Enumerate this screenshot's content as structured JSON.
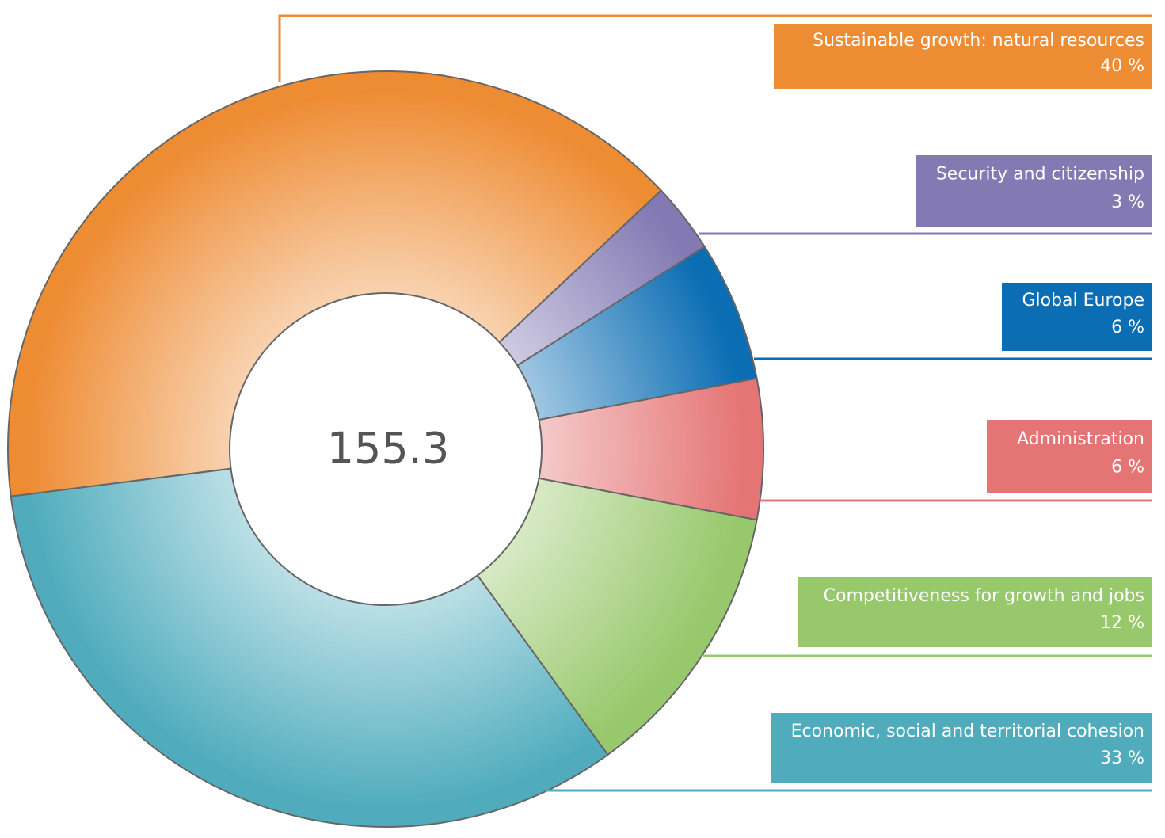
{
  "chart_data": {
    "type": "donut",
    "center_label": "155.3",
    "categories": [
      "Sustainable growth: natural resources",
      "Security and citizenship",
      "Global Europe",
      "Administration",
      "Competitiveness for growth and jobs",
      "Economic, social and territorial cohesion"
    ],
    "values": [
      40,
      3,
      6,
      6,
      12,
      33
    ],
    "value_labels": [
      "40 %",
      "3 %",
      "6 %",
      "6 %",
      "12 %",
      "33 %"
    ],
    "colors": [
      "#ee8c34",
      "#8379b3",
      "#0b6db3",
      "#e57575",
      "#98c86c",
      "#50acbd"
    ]
  }
}
